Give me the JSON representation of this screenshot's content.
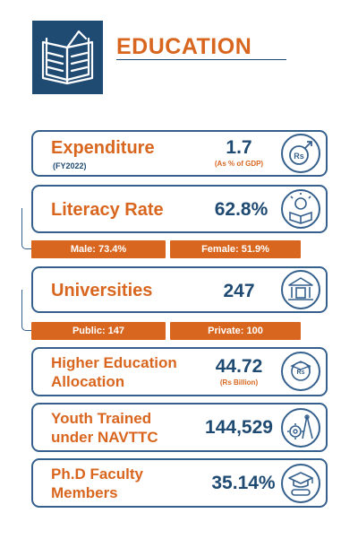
{
  "header": {
    "title": "EDUCATION",
    "icon": "open-book-icon"
  },
  "colors": {
    "accent": "#d9661f",
    "navy": "#1f4a72",
    "border": "#35608d"
  },
  "cards": {
    "expenditure": {
      "label": "Expenditure",
      "sub": "(FY2022)",
      "value": "1.7",
      "unit": "(As % of GDP)",
      "icon": "rupee-growth-icon"
    },
    "literacy": {
      "label": "Literacy Rate",
      "value": "62.8%",
      "icon": "lightbulb-book-icon"
    },
    "universities": {
      "label": "Universities",
      "value": "247",
      "icon": "university-building-icon"
    },
    "hea": {
      "label1": "Higher Education",
      "label2": "Allocation",
      "value": "44.72",
      "unit": "(Rs Billion)",
      "icon": "rupee-graduate-icon"
    },
    "youth": {
      "label1": "Youth Trained",
      "label2": "under NAVTTC",
      "value": "144,529",
      "icon": "gear-compass-icon"
    },
    "phd": {
      "label1": "Ph.D Faculty",
      "label2": "Members",
      "value": "35.14%",
      "icon": "graduation-cap-diploma-icon"
    }
  },
  "bars": {
    "male": "Male:  73.4%",
    "female": "Female:  51.9%",
    "public": "Public:  147",
    "private": "Private:  100"
  }
}
